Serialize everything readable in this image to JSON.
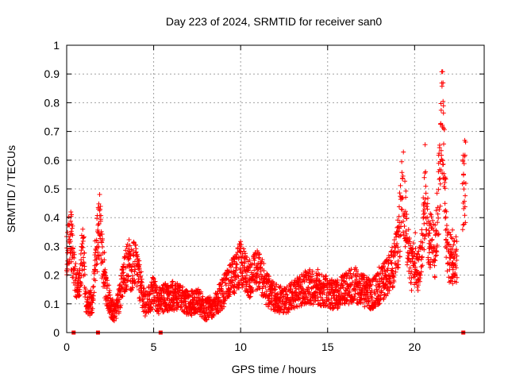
{
  "chart_data": {
    "type": "scatter",
    "title": "Day 223 of 2024, SRMTID for receiver san0",
    "xlabel": "GPS time / hours",
    "ylabel": "SRMTID / TECUs",
    "xlim": [
      0,
      24
    ],
    "ylim": [
      0,
      1
    ],
    "xticks": [
      "0",
      "5",
      "10",
      "15",
      "20"
    ],
    "yticks": [
      "0",
      "0.1",
      "0.2",
      "0.3",
      "0.4",
      "0.5",
      "0.6",
      "0.7",
      "0.8",
      "0.9",
      "1"
    ],
    "grid": true,
    "marker": "plus",
    "series_color": "#ff0000",
    "envelope": [
      [
        0.0,
        0.25
      ],
      [
        0.1,
        0.32
      ],
      [
        0.2,
        0.34
      ],
      [
        0.3,
        0.3
      ],
      [
        0.5,
        0.18
      ],
      [
        0.7,
        0.15
      ],
      [
        0.9,
        0.28
      ],
      [
        1.0,
        0.25
      ],
      [
        1.1,
        0.12
      ],
      [
        1.3,
        0.1
      ],
      [
        1.5,
        0.12
      ],
      [
        1.6,
        0.2
      ],
      [
        1.7,
        0.28
      ],
      [
        1.8,
        0.33
      ],
      [
        1.9,
        0.38
      ],
      [
        2.0,
        0.3
      ],
      [
        2.1,
        0.22
      ],
      [
        2.3,
        0.15
      ],
      [
        2.5,
        0.1
      ],
      [
        2.7,
        0.07
      ],
      [
        2.9,
        0.09
      ],
      [
        3.1,
        0.14
      ],
      [
        3.3,
        0.2
      ],
      [
        3.5,
        0.24
      ],
      [
        3.7,
        0.22
      ],
      [
        3.9,
        0.24
      ],
      [
        4.1,
        0.2
      ],
      [
        4.3,
        0.15
      ],
      [
        4.5,
        0.1
      ],
      [
        4.8,
        0.12
      ],
      [
        5.0,
        0.14
      ],
      [
        5.3,
        0.11
      ],
      [
        5.6,
        0.12
      ],
      [
        6.0,
        0.13
      ],
      [
        6.5,
        0.12
      ],
      [
        7.0,
        0.1
      ],
      [
        7.5,
        0.11
      ],
      [
        8.0,
        0.08
      ],
      [
        8.5,
        0.1
      ],
      [
        9.0,
        0.14
      ],
      [
        9.5,
        0.19
      ],
      [
        9.8,
        0.22
      ],
      [
        10.0,
        0.24
      ],
      [
        10.3,
        0.2
      ],
      [
        10.6,
        0.18
      ],
      [
        10.9,
        0.22
      ],
      [
        11.2,
        0.2
      ],
      [
        11.5,
        0.15
      ],
      [
        12.0,
        0.12
      ],
      [
        12.5,
        0.11
      ],
      [
        13.0,
        0.13
      ],
      [
        13.5,
        0.15
      ],
      [
        14.0,
        0.16
      ],
      [
        14.5,
        0.15
      ],
      [
        15.0,
        0.14
      ],
      [
        15.5,
        0.13
      ],
      [
        16.0,
        0.15
      ],
      [
        16.5,
        0.17
      ],
      [
        17.0,
        0.15
      ],
      [
        17.5,
        0.13
      ],
      [
        18.0,
        0.16
      ],
      [
        18.5,
        0.2
      ],
      [
        18.8,
        0.24
      ],
      [
        19.0,
        0.3
      ],
      [
        19.2,
        0.4
      ],
      [
        19.3,
        0.55
      ],
      [
        19.4,
        0.45
      ],
      [
        19.6,
        0.3
      ],
      [
        19.8,
        0.22
      ],
      [
        20.0,
        0.24
      ],
      [
        20.2,
        0.22
      ],
      [
        20.4,
        0.28
      ],
      [
        20.6,
        0.45
      ],
      [
        20.8,
        0.35
      ],
      [
        21.0,
        0.3
      ],
      [
        21.2,
        0.28
      ],
      [
        21.4,
        0.5
      ],
      [
        21.6,
        0.75
      ],
      [
        21.7,
        0.55
      ],
      [
        21.8,
        0.35
      ],
      [
        22.0,
        0.26
      ],
      [
        22.2,
        0.25
      ],
      [
        22.5,
        0.24
      ],
      [
        22.8,
        0.48
      ],
      [
        22.9,
        0.52
      ]
    ],
    "zero_markers": [
      0.4,
      1.8,
      5.4,
      22.8
    ]
  }
}
